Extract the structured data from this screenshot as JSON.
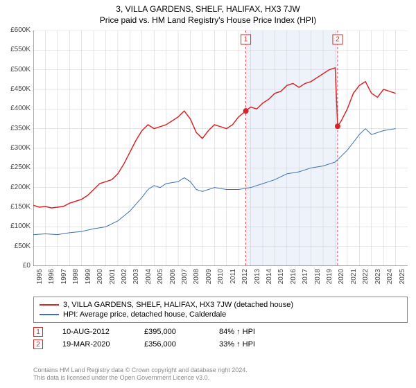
{
  "title": "3, VILLA GARDENS, SHELF, HALIFAX, HX3 7JW",
  "subtitle": "Price paid vs. HM Land Registry's House Price Index (HPI)",
  "chart": {
    "type": "line",
    "background_color": "#ffffff",
    "grid_color": "#cccccc",
    "axis_color": "#555555",
    "xlim_year": [
      1995,
      2026
    ],
    "ylim": [
      0,
      600000
    ],
    "ytick_step": 50000,
    "ytick_labels": [
      "£0",
      "£50K",
      "£100K",
      "£150K",
      "£200K",
      "£250K",
      "£300K",
      "£350K",
      "£400K",
      "£450K",
      "£500K",
      "£550K",
      "£600K"
    ],
    "xtick_years": [
      1995,
      1996,
      1997,
      1998,
      1999,
      2000,
      2001,
      2002,
      2003,
      2004,
      2005,
      2006,
      2007,
      2008,
      2009,
      2010,
      2011,
      2012,
      2013,
      2014,
      2015,
      2016,
      2017,
      2018,
      2019,
      2020,
      2021,
      2022,
      2023,
      2024,
      2025
    ],
    "shaded_band": {
      "x0_year": 2012.6,
      "x1_year": 2020.2,
      "color": "#eef2fb"
    },
    "series": [
      {
        "name": "property",
        "label": "3, VILLA GARDENS, SHELF, HALIFAX, HX3 7JW (detached house)",
        "color": "#d62728",
        "line_width": 1.5,
        "data": [
          [
            1995.0,
            155000
          ],
          [
            1995.5,
            150000
          ],
          [
            1996.0,
            152000
          ],
          [
            1996.5,
            148000
          ],
          [
            1997.0,
            150000
          ],
          [
            1997.5,
            152000
          ],
          [
            1998.0,
            160000
          ],
          [
            1998.5,
            165000
          ],
          [
            1999.0,
            170000
          ],
          [
            1999.5,
            180000
          ],
          [
            2000.0,
            195000
          ],
          [
            2000.5,
            210000
          ],
          [
            2001.0,
            215000
          ],
          [
            2001.5,
            220000
          ],
          [
            2002.0,
            235000
          ],
          [
            2002.5,
            260000
          ],
          [
            2003.0,
            290000
          ],
          [
            2003.5,
            320000
          ],
          [
            2004.0,
            345000
          ],
          [
            2004.5,
            360000
          ],
          [
            2005.0,
            350000
          ],
          [
            2005.5,
            355000
          ],
          [
            2006.0,
            360000
          ],
          [
            2006.5,
            370000
          ],
          [
            2007.0,
            380000
          ],
          [
            2007.5,
            395000
          ],
          [
            2008.0,
            375000
          ],
          [
            2008.5,
            340000
          ],
          [
            2009.0,
            325000
          ],
          [
            2009.5,
            345000
          ],
          [
            2010.0,
            360000
          ],
          [
            2010.5,
            355000
          ],
          [
            2011.0,
            350000
          ],
          [
            2011.5,
            360000
          ],
          [
            2012.0,
            380000
          ],
          [
            2012.6,
            395000
          ],
          [
            2013.0,
            405000
          ],
          [
            2013.5,
            400000
          ],
          [
            2014.0,
            415000
          ],
          [
            2014.5,
            425000
          ],
          [
            2015.0,
            440000
          ],
          [
            2015.5,
            445000
          ],
          [
            2016.0,
            460000
          ],
          [
            2016.5,
            465000
          ],
          [
            2017.0,
            455000
          ],
          [
            2017.5,
            465000
          ],
          [
            2018.0,
            470000
          ],
          [
            2018.5,
            480000
          ],
          [
            2019.0,
            490000
          ],
          [
            2019.5,
            500000
          ],
          [
            2020.0,
            505000
          ],
          [
            2020.2,
            356000
          ],
          [
            2020.5,
            370000
          ],
          [
            2021.0,
            400000
          ],
          [
            2021.5,
            440000
          ],
          [
            2022.0,
            460000
          ],
          [
            2022.5,
            470000
          ],
          [
            2023.0,
            440000
          ],
          [
            2023.5,
            430000
          ],
          [
            2024.0,
            450000
          ],
          [
            2024.5,
            445000
          ],
          [
            2025.0,
            440000
          ]
        ]
      },
      {
        "name": "hpi",
        "label": "HPI: Average price, detached house, Calderdale",
        "color": "#3b6fb6",
        "line_width": 1,
        "data": [
          [
            1995.0,
            80000
          ],
          [
            1996.0,
            82000
          ],
          [
            1997.0,
            80000
          ],
          [
            1998.0,
            85000
          ],
          [
            1999.0,
            88000
          ],
          [
            2000.0,
            95000
          ],
          [
            2001.0,
            100000
          ],
          [
            2002.0,
            115000
          ],
          [
            2003.0,
            140000
          ],
          [
            2004.0,
            175000
          ],
          [
            2004.5,
            195000
          ],
          [
            2005.0,
            205000
          ],
          [
            2005.5,
            200000
          ],
          [
            2006.0,
            210000
          ],
          [
            2007.0,
            215000
          ],
          [
            2007.5,
            225000
          ],
          [
            2008.0,
            215000
          ],
          [
            2008.5,
            195000
          ],
          [
            2009.0,
            190000
          ],
          [
            2010.0,
            200000
          ],
          [
            2011.0,
            195000
          ],
          [
            2012.0,
            195000
          ],
          [
            2013.0,
            200000
          ],
          [
            2014.0,
            210000
          ],
          [
            2015.0,
            220000
          ],
          [
            2016.0,
            235000
          ],
          [
            2017.0,
            240000
          ],
          [
            2018.0,
            250000
          ],
          [
            2019.0,
            255000
          ],
          [
            2020.0,
            265000
          ],
          [
            2021.0,
            295000
          ],
          [
            2022.0,
            335000
          ],
          [
            2022.5,
            350000
          ],
          [
            2023.0,
            335000
          ],
          [
            2024.0,
            345000
          ],
          [
            2025.0,
            350000
          ]
        ]
      }
    ],
    "sale_markers": [
      {
        "n": "1",
        "year": 2012.6,
        "price": 395000,
        "color": "#d62728"
      },
      {
        "n": "2",
        "year": 2020.2,
        "price": 356000,
        "color": "#d62728"
      }
    ],
    "title_fontsize": 12,
    "label_fontsize": 10
  },
  "legend": {
    "items": [
      {
        "color": "#d62728",
        "label": "3, VILLA GARDENS, SHELF, HALIFAX, HX3 7JW (detached house)"
      },
      {
        "color": "#3b6fb6",
        "label": "HPI: Average price, detached house, Calderdale"
      }
    ]
  },
  "sales": [
    {
      "n": "1",
      "color": "#d62728",
      "date": "10-AUG-2012",
      "price": "£395,000",
      "hpi": "84% ↑ HPI"
    },
    {
      "n": "2",
      "color": "#d62728",
      "date": "19-MAR-2020",
      "price": "£356,000",
      "hpi": "33% ↑ HPI"
    }
  ],
  "footer_line1": "Contains HM Land Registry data © Crown copyright and database right 2024.",
  "footer_line2": "This data is licensed under the Open Government Licence v3.0."
}
